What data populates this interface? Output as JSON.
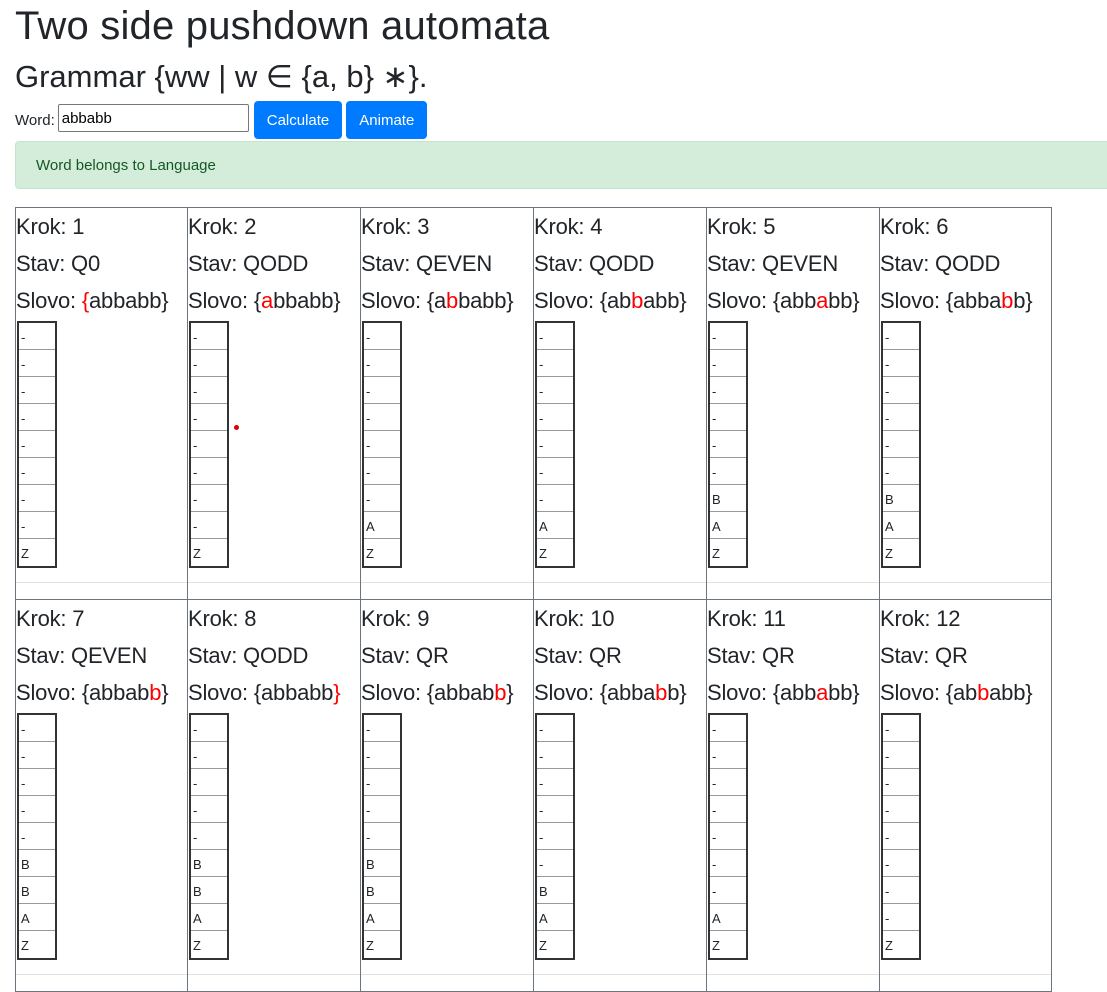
{
  "page": {
    "title": "Two side pushdown automata",
    "subtitle": "Grammar {ww | w ∈ {a, b} ∗}."
  },
  "form": {
    "label": "Word:",
    "value": "abbabb",
    "calculate_label": "Calculate",
    "animate_label": "Animate"
  },
  "result": {
    "message": "Word belongs to Language"
  },
  "colors": {
    "accent": "#007bff",
    "success_bg": "#d4edda",
    "success_text": "#155724",
    "highlight": "#ff0000"
  },
  "labels": {
    "step": "Krok: ",
    "state": "Stav: ",
    "word": "Slovo: "
  },
  "steps": [
    {
      "step": "1",
      "state": "Q0",
      "word": [
        "",
        "{",
        "abbabb}"
      ],
      "stack": [
        "-",
        "-",
        "-",
        "-",
        "-",
        "-",
        "-",
        "-",
        "Z"
      ]
    },
    {
      "step": "2",
      "state": "QODD",
      "word": [
        "{",
        "a",
        "bbabb}"
      ],
      "stack": [
        "-",
        "-",
        "-",
        "-",
        "-",
        "-",
        "-",
        "-",
        "Z"
      ]
    },
    {
      "step": "3",
      "state": "QEVEN",
      "word": [
        "{a",
        "b",
        "babb}"
      ],
      "stack": [
        "-",
        "-",
        "-",
        "-",
        "-",
        "-",
        "-",
        "A",
        "Z"
      ]
    },
    {
      "step": "4",
      "state": "QODD",
      "word": [
        "{ab",
        "b",
        "abb}"
      ],
      "stack": [
        "-",
        "-",
        "-",
        "-",
        "-",
        "-",
        "-",
        "A",
        "Z"
      ]
    },
    {
      "step": "5",
      "state": "QEVEN",
      "word": [
        "{abb",
        "a",
        "bb}"
      ],
      "stack": [
        "-",
        "-",
        "-",
        "-",
        "-",
        "-",
        "B",
        "A",
        "Z"
      ]
    },
    {
      "step": "6",
      "state": "QODD",
      "word": [
        "{abba",
        "b",
        "b}"
      ],
      "stack": [
        "-",
        "-",
        "-",
        "-",
        "-",
        "-",
        "B",
        "A",
        "Z"
      ]
    },
    {
      "step": "7",
      "state": "QEVEN",
      "word": [
        "{abbab",
        "b",
        "}"
      ],
      "stack": [
        "-",
        "-",
        "-",
        "-",
        "-",
        "B",
        "B",
        "A",
        "Z"
      ]
    },
    {
      "step": "8",
      "state": "QODD",
      "word": [
        "{abbabb",
        "}",
        ""
      ],
      "stack": [
        "-",
        "-",
        "-",
        "-",
        "-",
        "B",
        "B",
        "A",
        "Z"
      ]
    },
    {
      "step": "9",
      "state": "QR",
      "word": [
        "{abbab",
        "b",
        "}"
      ],
      "stack": [
        "-",
        "-",
        "-",
        "-",
        "-",
        "B",
        "B",
        "A",
        "Z"
      ]
    },
    {
      "step": "10",
      "state": "QR",
      "word": [
        "{abba",
        "b",
        "b}"
      ],
      "stack": [
        "-",
        "-",
        "-",
        "-",
        "-",
        "-",
        "B",
        "A",
        "Z"
      ]
    },
    {
      "step": "11",
      "state": "QR",
      "word": [
        "{abb",
        "a",
        "bb}"
      ],
      "stack": [
        "-",
        "-",
        "-",
        "-",
        "-",
        "-",
        "-",
        "A",
        "Z"
      ]
    },
    {
      "step": "12",
      "state": "QR",
      "word": [
        "{ab",
        "b",
        "abb}"
      ],
      "stack": [
        "-",
        "-",
        "-",
        "-",
        "-",
        "-",
        "-",
        "-",
        "Z"
      ]
    }
  ]
}
